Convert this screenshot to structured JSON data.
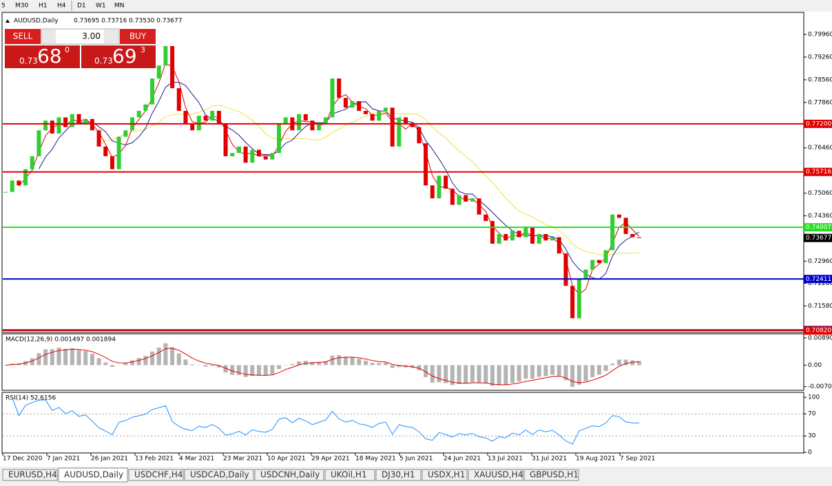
{
  "toolbar": {
    "timeframes": [
      "5",
      "M30",
      "H1",
      "H4",
      "D1",
      "W1",
      "MN"
    ]
  },
  "trade_panel": {
    "sell": "SELL",
    "lots": "3.00",
    "buy": "BUY",
    "bid": {
      "big": "0.73",
      "pips": "68",
      "frac": "0"
    },
    "ask": {
      "big": "0.73",
      "pips": "69",
      "frac": "3"
    }
  },
  "chart_data": {
    "type": "candlestick",
    "title": "AUDUSD,Daily",
    "quote": "0.73695 0.73716 0.73530 0.73677",
    "up_color": "#32cd32",
    "down_color": "#e00000",
    "closes": [
      0.751,
      0.7545,
      0.753,
      0.758,
      0.762,
      0.77,
      0.773,
      0.769,
      0.774,
      0.771,
      0.775,
      0.772,
      0.7735,
      0.77,
      0.765,
      0.762,
      0.758,
      0.768,
      0.77,
      0.774,
      0.776,
      0.778,
      0.786,
      0.79,
      0.796,
      0.783,
      0.776,
      0.772,
      0.77,
      0.7745,
      0.773,
      0.776,
      0.772,
      0.762,
      0.763,
      0.765,
      0.76,
      0.764,
      0.762,
      0.761,
      0.763,
      0.772,
      0.774,
      0.77,
      0.775,
      0.773,
      0.77,
      0.772,
      0.774,
      0.786,
      0.78,
      0.777,
      0.779,
      0.776,
      0.775,
      0.773,
      0.776,
      0.777,
      0.765,
      0.774,
      0.772,
      0.771,
      0.766,
      0.753,
      0.749,
      0.756,
      0.752,
      0.747,
      0.75,
      0.748,
      0.749,
      0.744,
      0.742,
      0.735,
      0.738,
      0.736,
      0.739,
      0.737,
      0.74,
      0.735,
      0.738,
      0.736,
      0.737,
      0.732,
      0.722,
      0.712,
      0.724,
      0.727,
      0.73,
      0.729,
      0.733,
      0.744,
      0.743,
      0.738,
      0.737,
      0.73677
    ],
    "ylim": [
      0.7076,
      0.8064
    ],
    "yticks": [
      {
        "value": 0.7996,
        "label": "0.79960"
      },
      {
        "value": 0.7926,
        "label": "0.79260"
      },
      {
        "value": 0.7856,
        "label": "0.78560"
      },
      {
        "value": 0.7786,
        "label": "0.77860"
      },
      {
        "value": 0.7646,
        "label": "0.76460"
      },
      {
        "value": 0.7506,
        "label": "0.75060"
      },
      {
        "value": 0.7436,
        "label": "0.74360"
      },
      {
        "value": 0.7296,
        "label": "0.72960"
      },
      {
        "value": 0.7228,
        "label": "0.72280"
      },
      {
        "value": 0.7158,
        "label": "0.71580"
      }
    ],
    "levels": [
      {
        "value": 0.772,
        "label": "0.77200",
        "color": "#e00000"
      },
      {
        "value": 0.75716,
        "label": "0.75716",
        "color": "#e00000"
      },
      {
        "value": 0.74007,
        "label": "0.74007",
        "color": "#22dd22"
      },
      {
        "value": 0.72411,
        "label": "0.72411",
        "color": "#0000cc"
      },
      {
        "value": 0.70836,
        "label": "0.70836",
        "color": "#0000cc"
      },
      {
        "value": 0.7082,
        "label": "0.70820",
        "color": "#e00000"
      }
    ],
    "last_price": {
      "value": 0.73677,
      "label": "0.73677"
    },
    "x_labels": [
      "17 Dec 2020",
      "7 Jan 2021",
      "26 Jan 2021",
      "13 Feb 2021",
      "4 Mar 2021",
      "23 Mar 2021",
      "10 Apr 2021",
      "29 Apr 2021",
      "18 May 2021",
      "5 Jun 2021",
      "24 Jun 2021",
      "13 Jul 2021",
      "31 Jul 2021",
      "19 Aug 2021",
      "7 Sep 2021"
    ],
    "macd": {
      "title": "MACD(12,26,9) 0.001497 0.001894",
      "ylim": [
        -0.0082,
        0.0102
      ],
      "yticks": [
        0.008904,
        {
          "value": 0,
          "label": "0.00"
        },
        -0.007013
      ]
    },
    "rsi": {
      "title": "RSI(14) 52.6156",
      "ylim": [
        -1,
        109
      ],
      "yticks": [
        100,
        70,
        30,
        0
      ]
    }
  },
  "tabs": [
    "EURUSD,H4",
    "AUDUSD,Daily",
    "USDCHF,H4",
    "USDCAD,Daily",
    "USDCNH,Daily",
    "UKOil,H1",
    "DJ30,H1",
    "USDX,H1",
    "XAUUSD,H4",
    "GBPUSD,H1"
  ],
  "active_tab": 1
}
